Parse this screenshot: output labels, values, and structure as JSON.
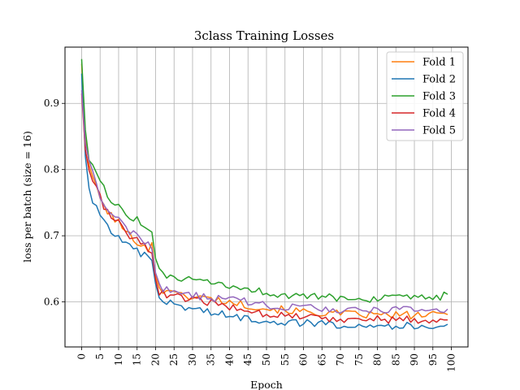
{
  "chart_data": {
    "type": "line",
    "title": "3class Training Losses",
    "xlabel": "Epoch",
    "ylabel": "loss per batch (size = 16)",
    "xlim": [
      -4.5,
      104.5
    ],
    "ylim": [
      0.532,
      0.985
    ],
    "xticks": [
      0,
      5,
      10,
      15,
      20,
      25,
      30,
      35,
      40,
      45,
      50,
      55,
      60,
      65,
      70,
      75,
      80,
      85,
      90,
      95,
      100
    ],
    "yticks": [
      0.6,
      0.7,
      0.8,
      0.9
    ],
    "grid": true,
    "legend_position": "top-right",
    "series": [
      {
        "name": "Fold 1",
        "color": "#ff7f0e",
        "key_points": [
          [
            0,
            0.96
          ],
          [
            1,
            0.85
          ],
          [
            2,
            0.81
          ],
          [
            4,
            0.77
          ],
          [
            6,
            0.745
          ],
          [
            8,
            0.73
          ],
          [
            10,
            0.72
          ],
          [
            12,
            0.705
          ],
          [
            14,
            0.695
          ],
          [
            16,
            0.69
          ],
          [
            18,
            0.68
          ],
          [
            19,
            0.685
          ],
          [
            20,
            0.64
          ],
          [
            21,
            0.625
          ],
          [
            22,
            0.615
          ],
          [
            24,
            0.622
          ],
          [
            26,
            0.61
          ],
          [
            30,
            0.608
          ],
          [
            35,
            0.605
          ],
          [
            40,
            0.6
          ],
          [
            45,
            0.595
          ],
          [
            50,
            0.59
          ],
          [
            55,
            0.588
          ],
          [
            60,
            0.585
          ],
          [
            65,
            0.583
          ],
          [
            70,
            0.582
          ],
          [
            75,
            0.581
          ],
          [
            80,
            0.58
          ],
          [
            85,
            0.58
          ],
          [
            90,
            0.58
          ],
          [
            95,
            0.58
          ],
          [
            99,
            0.582
          ]
        ]
      },
      {
        "name": "Fold 2",
        "color": "#1f77b4",
        "key_points": [
          [
            0,
            0.945
          ],
          [
            1,
            0.82
          ],
          [
            2,
            0.77
          ],
          [
            4,
            0.74
          ],
          [
            6,
            0.72
          ],
          [
            8,
            0.71
          ],
          [
            10,
            0.695
          ],
          [
            12,
            0.685
          ],
          [
            14,
            0.678
          ],
          [
            16,
            0.673
          ],
          [
            18,
            0.665
          ],
          [
            19,
            0.66
          ],
          [
            20,
            0.63
          ],
          [
            21,
            0.605
          ],
          [
            22,
            0.6
          ],
          [
            24,
            0.598
          ],
          [
            26,
            0.595
          ],
          [
            30,
            0.59
          ],
          [
            35,
            0.585
          ],
          [
            40,
            0.578
          ],
          [
            45,
            0.575
          ],
          [
            50,
            0.572
          ],
          [
            55,
            0.57
          ],
          [
            60,
            0.568
          ],
          [
            65,
            0.567
          ],
          [
            70,
            0.566
          ],
          [
            75,
            0.566
          ],
          [
            80,
            0.565
          ],
          [
            85,
            0.564
          ],
          [
            90,
            0.563
          ],
          [
            95,
            0.564
          ],
          [
            99,
            0.566
          ]
        ]
      },
      {
        "name": "Fold 3",
        "color": "#2ca02c",
        "key_points": [
          [
            0,
            0.967
          ],
          [
            1,
            0.86
          ],
          [
            2,
            0.82
          ],
          [
            4,
            0.79
          ],
          [
            6,
            0.77
          ],
          [
            8,
            0.755
          ],
          [
            10,
            0.742
          ],
          [
            12,
            0.735
          ],
          [
            14,
            0.728
          ],
          [
            16,
            0.72
          ],
          [
            18,
            0.71
          ],
          [
            19,
            0.705
          ],
          [
            20,
            0.66
          ],
          [
            21,
            0.645
          ],
          [
            22,
            0.642
          ],
          [
            24,
            0.638
          ],
          [
            26,
            0.636
          ],
          [
            30,
            0.632
          ],
          [
            35,
            0.627
          ],
          [
            40,
            0.623
          ],
          [
            45,
            0.62
          ],
          [
            50,
            0.614
          ],
          [
            55,
            0.61
          ],
          [
            60,
            0.608
          ],
          [
            65,
            0.607
          ],
          [
            70,
            0.606
          ],
          [
            75,
            0.605
          ],
          [
            80,
            0.605
          ],
          [
            85,
            0.605
          ],
          [
            90,
            0.605
          ],
          [
            95,
            0.606
          ],
          [
            99,
            0.61
          ]
        ]
      },
      {
        "name": "Fold 4",
        "color": "#d62728",
        "key_points": [
          [
            0,
            0.915
          ],
          [
            1,
            0.83
          ],
          [
            2,
            0.8
          ],
          [
            4,
            0.77
          ],
          [
            6,
            0.745
          ],
          [
            8,
            0.73
          ],
          [
            10,
            0.718
          ],
          [
            12,
            0.705
          ],
          [
            14,
            0.697
          ],
          [
            16,
            0.69
          ],
          [
            18,
            0.682
          ],
          [
            19,
            0.675
          ],
          [
            20,
            0.632
          ],
          [
            21,
            0.612
          ],
          [
            22,
            0.613
          ],
          [
            24,
            0.61
          ],
          [
            26,
            0.607
          ],
          [
            30,
            0.603
          ],
          [
            35,
            0.598
          ],
          [
            40,
            0.593
          ],
          [
            45,
            0.588
          ],
          [
            50,
            0.582
          ],
          [
            55,
            0.58
          ],
          [
            60,
            0.578
          ],
          [
            65,
            0.575
          ],
          [
            70,
            0.575
          ],
          [
            75,
            0.574
          ],
          [
            80,
            0.574
          ],
          [
            85,
            0.573
          ],
          [
            90,
            0.573
          ],
          [
            95,
            0.573
          ],
          [
            99,
            0.57
          ]
        ]
      },
      {
        "name": "Fold 5",
        "color": "#9467bd",
        "key_points": [
          [
            0,
            0.92
          ],
          [
            1,
            0.84
          ],
          [
            2,
            0.81
          ],
          [
            4,
            0.775
          ],
          [
            6,
            0.75
          ],
          [
            8,
            0.735
          ],
          [
            10,
            0.722
          ],
          [
            12,
            0.71
          ],
          [
            14,
            0.703
          ],
          [
            16,
            0.697
          ],
          [
            18,
            0.688
          ],
          [
            19,
            0.683
          ],
          [
            20,
            0.645
          ],
          [
            21,
            0.625
          ],
          [
            22,
            0.62
          ],
          [
            24,
            0.616
          ],
          [
            26,
            0.613
          ],
          [
            30,
            0.61
          ],
          [
            35,
            0.606
          ],
          [
            40,
            0.603
          ],
          [
            45,
            0.6
          ],
          [
            50,
            0.595
          ],
          [
            55,
            0.593
          ],
          [
            60,
            0.591
          ],
          [
            65,
            0.589
          ],
          [
            70,
            0.588
          ],
          [
            75,
            0.588
          ],
          [
            80,
            0.588
          ],
          [
            85,
            0.588
          ],
          [
            90,
            0.587
          ],
          [
            95,
            0.587
          ],
          [
            99,
            0.585
          ]
        ]
      }
    ]
  }
}
